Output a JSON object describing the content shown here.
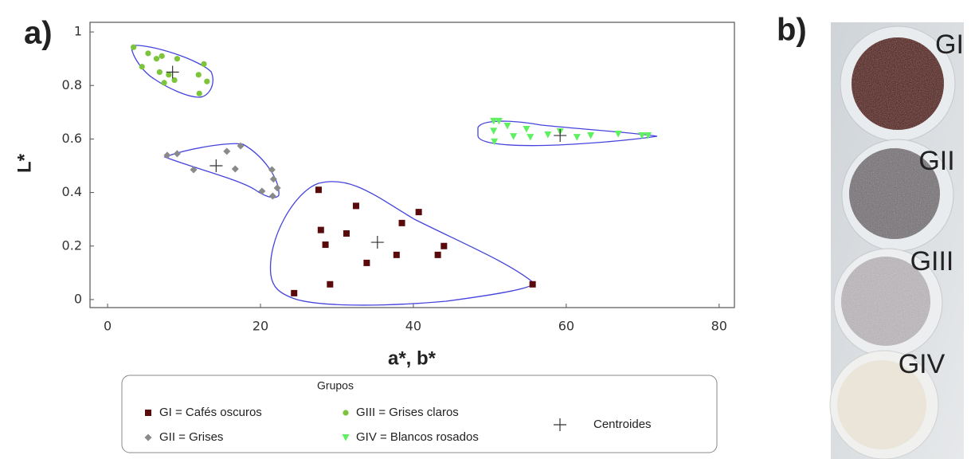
{
  "panel_labels": [
    "a)",
    "b)"
  ],
  "photo": {
    "labels": [
      "GI",
      "GII",
      "GIII",
      "GIV"
    ]
  },
  "chart_data": {
    "type": "scatter",
    "x_label": "a*, b*",
    "y_label": "L*",
    "xlim": [
      -2.3,
      82
    ],
    "ylim": [
      -0.03,
      1.036
    ],
    "xticks": [
      0,
      20,
      40,
      60,
      80
    ],
    "yticks": [
      0,
      0.2,
      0.4,
      0.6,
      0.8,
      1
    ],
    "legend_title": "Grupos",
    "series": [
      {
        "name": "GI = Cafés oscuros",
        "color": "#5a0a0a",
        "marker": "square",
        "x": [
          27.6,
          27.9,
          28.5,
          29.1,
          31.25,
          32.5,
          33.9,
          37.8,
          38.5,
          40.7,
          43.2,
          44,
          24.4,
          55.6
        ],
        "values": [
          0.41,
          0.26,
          0.205,
          0.057,
          0.247,
          0.35,
          0.137,
          0.167,
          0.286,
          0.327,
          0.167,
          0.2,
          0.024,
          0.057
        ]
      },
      {
        "name": "GII = Grises",
        "color": "#8a8a8a",
        "marker": "diamond",
        "x": [
          7.8,
          9.1,
          11.25,
          15.6,
          16.7,
          17.4,
          21.5,
          21.7,
          22.2,
          20.2,
          21.6
        ],
        "values": [
          0.539,
          0.545,
          0.485,
          0.554,
          0.488,
          0.574,
          0.485,
          0.45,
          0.417,
          0.405,
          0.387
        ]
      },
      {
        "name": "GIII = Grises claros",
        "color": "#7cc43a",
        "marker": "circle",
        "x": [
          3.4,
          4.5,
          5.3,
          6.4,
          7.1,
          6.8,
          7.4,
          8.0,
          9.1,
          8.75,
          11.9,
          12.6,
          13.0,
          12.0
        ],
        "values": [
          0.943,
          0.87,
          0.92,
          0.9,
          0.91,
          0.85,
          0.81,
          0.84,
          0.9,
          0.82,
          0.84,
          0.88,
          0.815,
          0.77
        ]
      },
      {
        "name": "GIV = Blancos rosados",
        "color": "#5ef05e",
        "marker": "triangle",
        "x": [
          50.5,
          50.5,
          50.6,
          51.2,
          52.3,
          53.1,
          54.8,
          55.3,
          57.6,
          59.2,
          61.4,
          63.2,
          66.8,
          69.9,
          70.7
        ],
        "values": [
          0.667,
          0.63,
          0.59,
          0.667,
          0.649,
          0.61,
          0.637,
          0.607,
          0.616,
          0.628,
          0.607,
          0.613,
          0.619,
          0.613,
          0.613
        ]
      },
      {
        "name": "Centroides",
        "color": "#333333",
        "marker": "plus",
        "x": [
          8.5,
          14.2,
          35.3,
          59.2
        ],
        "values": [
          0.85,
          0.5,
          0.214,
          0.613
        ]
      }
    ]
  }
}
